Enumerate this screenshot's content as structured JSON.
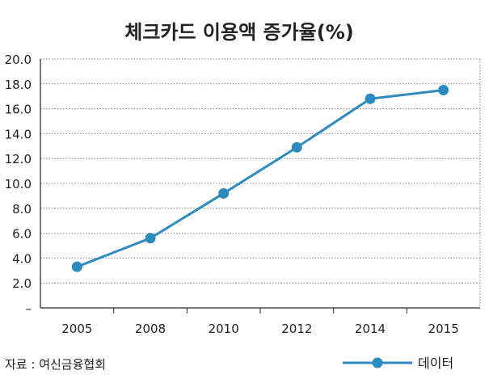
{
  "chart_data": {
    "type": "line",
    "title": "체크카드 이용액 증가율(%)",
    "categories": [
      "2005",
      "2008",
      "2010",
      "2012",
      "2014",
      "2015"
    ],
    "series": [
      {
        "name": "데이터",
        "values": [
          3.3,
          5.6,
          9.2,
          12.9,
          16.8,
          17.5
        ]
      }
    ],
    "yticks": [
      "–",
      "2.0",
      "4.0",
      "6.0",
      "8.0",
      "10.0",
      "12.0",
      "14.0",
      "16.0",
      "18.0",
      "20.0"
    ],
    "ylim": [
      0,
      20
    ],
    "xlabel": "",
    "ylabel": "",
    "grid": true,
    "legend": "bottom-right",
    "source": "자료 : 여신금융협회",
    "colors": {
      "line": "#2e8bc0",
      "axis": "#222222",
      "grid": "#888888",
      "text": "#222222"
    }
  }
}
